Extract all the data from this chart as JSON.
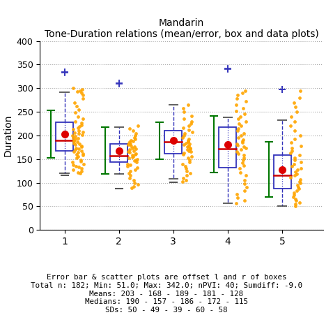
{
  "title": "Mandarin",
  "subtitle": "Tone-Duration relations (mean/error, box and data plots)",
  "ylabel": "Duration",
  "xlabel_note": "Error bar & scatter plots are offset l and r of boxes",
  "footer_lines": [
    "Total n: 182; Min: 51.0; Max: 342.0; nPVI: 40; Sumdiff: -9.0",
    "Means: 203 - 168 - 189 - 181 - 128",
    "Medians: 190 - 157 - 186 - 172 - 115",
    "SDs: 50 - 49 - 39 - 60 - 58"
  ],
  "ylim": [
    0,
    400
  ],
  "yticks": [
    0,
    50,
    100,
    150,
    200,
    250,
    300,
    350,
    400
  ],
  "tones": [
    1,
    2,
    3,
    4,
    5
  ],
  "means": [
    203,
    168,
    189,
    181,
    128
  ],
  "sds": [
    50,
    49,
    39,
    60,
    58
  ],
  "medians": [
    190,
    157,
    186,
    172,
    115
  ],
  "q1": [
    168,
    143,
    162,
    132,
    88
  ],
  "q3": [
    228,
    182,
    210,
    218,
    158
  ],
  "whisker_low": [
    120,
    119,
    108,
    57,
    50
  ],
  "whisker_high": [
    292,
    218,
    265,
    238,
    233
  ],
  "flier_high_1": [
    333,
    335
  ],
  "flier_high_2": [
    309,
    311
  ],
  "flier_high_3": [],
  "flier_high_4": [
    340,
    342
  ],
  "flier_high_5": [
    297,
    298
  ],
  "flier_low_1": [
    115
  ],
  "flier_low_2": [
    87
  ],
  "flier_low_3": [
    101
  ],
  "flier_low_4": [],
  "flier_low_5": [],
  "box_color": "#3333bb",
  "median_color": "#cc0000",
  "mean_color": "#dd0000",
  "scatter_color": "#FFA500",
  "errorbar_color": "#007700",
  "whisker_color": "#3333bb",
  "background_color": "#ffffff",
  "scatter_seed": 99,
  "scatter_data": {
    "1": [
      120,
      122,
      125,
      128,
      130,
      133,
      135,
      138,
      140,
      143,
      145,
      148,
      152,
      155,
      158,
      160,
      162,
      164,
      166,
      168,
      170,
      172,
      174,
      176,
      178,
      180,
      182,
      184,
      186,
      188,
      190,
      192,
      194,
      196,
      198,
      200,
      202,
      204,
      206,
      208,
      210,
      213,
      216,
      219,
      222,
      226,
      230,
      235,
      240,
      248,
      255,
      262,
      270,
      278,
      285,
      290,
      293,
      295,
      297,
      300
    ],
    "2": [
      89,
      92,
      96,
      100,
      105,
      110,
      115,
      120,
      125,
      128,
      132,
      135,
      138,
      140,
      143,
      146,
      148,
      150,
      152,
      154,
      156,
      158,
      160,
      162,
      164,
      166,
      168,
      170,
      172,
      174,
      176,
      178,
      180,
      182,
      184,
      186,
      188,
      190,
      193,
      196,
      200,
      205,
      210,
      215,
      220
    ],
    "3": [
      102,
      106,
      110,
      115,
      120,
      125,
      130,
      135,
      140,
      144,
      148,
      152,
      156,
      160,
      163,
      166,
      168,
      170,
      172,
      174,
      176,
      178,
      180,
      182,
      184,
      186,
      188,
      190,
      193,
      196,
      200,
      204,
      208,
      212,
      216,
      220,
      225,
      230,
      235,
      242,
      250,
      258,
      265
    ],
    "4": [
      57,
      62,
      68,
      75,
      83,
      90,
      98,
      106,
      115,
      122,
      130,
      136,
      142,
      148,
      153,
      158,
      162,
      166,
      170,
      173,
      176,
      179,
      182,
      185,
      188,
      191,
      195,
      200,
      205,
      210,
      215,
      220,
      225,
      230,
      236,
      240,
      246,
      252,
      258,
      265,
      272,
      278,
      285,
      290,
      295
    ],
    "5": [
      51,
      55,
      58,
      62,
      66,
      70,
      74,
      78,
      83,
      87,
      91,
      95,
      99,
      103,
      107,
      111,
      115,
      119,
      123,
      127,
      131,
      135,
      139,
      143,
      148,
      153,
      158,
      163,
      168,
      173,
      178,
      185,
      192,
      200,
      210,
      220,
      230,
      240,
      250,
      260,
      270,
      280,
      295
    ]
  }
}
